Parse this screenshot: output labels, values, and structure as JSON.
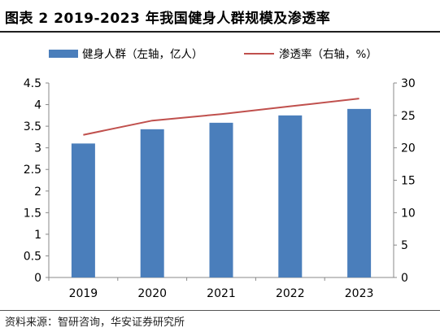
{
  "title": "图表 2 2019-2023 年我国健身人群规模及渗透率",
  "source": "资料来源：智研咨询，华安证券研究所",
  "chart_data": {
    "type": "bar",
    "categories": [
      "2019",
      "2020",
      "2021",
      "2022",
      "2023"
    ],
    "series": [
      {
        "name": "健身人群（左轴，亿人）",
        "type": "bar",
        "axis": "left",
        "color": "#4a7ebb",
        "values": [
          3.1,
          3.43,
          3.58,
          3.75,
          3.9
        ]
      },
      {
        "name": "渗透率（右轴，%）",
        "type": "line",
        "axis": "right",
        "color": "#c0504d",
        "values": [
          22.0,
          24.2,
          25.2,
          26.4,
          27.6
        ]
      }
    ],
    "left_axis": {
      "ylim": [
        0,
        4.5
      ],
      "ticks": [
        "0",
        "0.5",
        "1",
        "1.5",
        "2",
        "2.5",
        "3",
        "3.5",
        "4",
        "4.5"
      ]
    },
    "right_axis": {
      "ylim": [
        0,
        30
      ],
      "ticks": [
        "0",
        "5",
        "10",
        "15",
        "20",
        "25",
        "30"
      ]
    },
    "legend_position": "top",
    "grid": false
  }
}
